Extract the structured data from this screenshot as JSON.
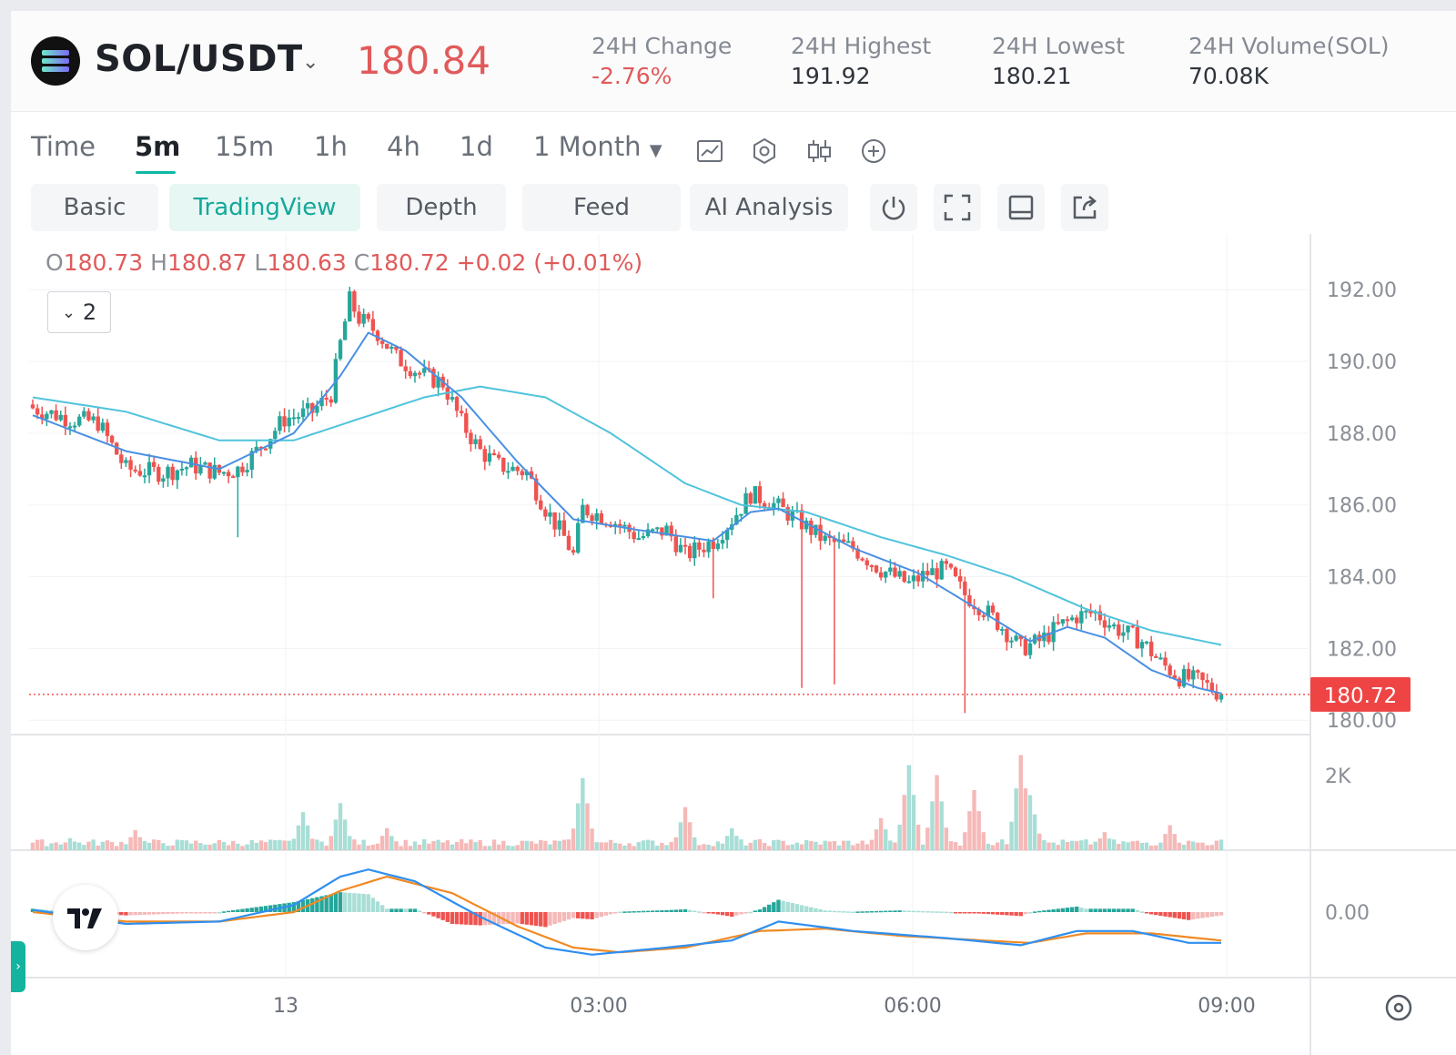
{
  "header": {
    "pair": "SOL/USDT",
    "price": "180.84",
    "stats": [
      {
        "label": "24H Change",
        "value": "-2.76%",
        "negative": true
      },
      {
        "label": "24H Highest",
        "value": "191.92",
        "negative": false
      },
      {
        "label": "24H Lowest",
        "value": "180.21",
        "negative": false
      },
      {
        "label": "24H Volume(SOL)",
        "value": "70.08K",
        "negative": false
      }
    ]
  },
  "toolbar": {
    "time_tabs": [
      "Time",
      "5m",
      "15m",
      "1h",
      "4h",
      "1d"
    ],
    "active_tab": "5m",
    "range_dropdown": "1 Month",
    "icons": [
      "indicator-chart-icon",
      "settings-hexagon-icon",
      "candle-style-icon",
      "add-circle-icon"
    ]
  },
  "views": {
    "buttons": [
      "Basic",
      "TradingView",
      "Depth",
      "Feed",
      "AI Analysis"
    ],
    "active": "TradingView",
    "icons": [
      "power-icon",
      "fullscreen-icon",
      "layout-icon",
      "share-icon"
    ]
  },
  "ohlc": {
    "o_key": "O",
    "o": "180.73",
    "h_key": "H",
    "h": "180.87",
    "l_key": "L",
    "l": "180.63",
    "c_key": "C",
    "c": "180.72",
    "change": "+0.02 (+0.01%)"
  },
  "indicator_toggle": "2",
  "colors": {
    "up": "#26a69a",
    "down": "#ef5350",
    "ma_fast": "#4a90e2",
    "ma_slow": "#4fc3dc",
    "macd": "#2f8ff0",
    "signal": "#f08a24",
    "accent": "#0fb7a6"
  },
  "chart_data": {
    "type": "candlestick",
    "price_axis": {
      "ticks": [
        "192.00",
        "190.00",
        "188.00",
        "186.00",
        "184.00",
        "182.00",
        "180.00"
      ],
      "range": [
        179.6,
        193.3
      ]
    },
    "last_price_label": "180.72",
    "last_price": 180.72,
    "time_axis": [
      "13",
      "03:00",
      "06:00",
      "09:00"
    ],
    "volume_axis": {
      "ticks": [
        "2K"
      ]
    },
    "macd_axis": {
      "ticks": [
        "0.00"
      ]
    },
    "close_path": [
      [
        0,
        188.7
      ],
      [
        8,
        188.4
      ],
      [
        14,
        188.3
      ],
      [
        20,
        187.0
      ],
      [
        28,
        186.9
      ],
      [
        34,
        187.1
      ],
      [
        40,
        186.9
      ],
      [
        44,
        187.0
      ],
      [
        48,
        187.5
      ],
      [
        54,
        188.4
      ],
      [
        60,
        188.6
      ],
      [
        64,
        189.1
      ],
      [
        66,
        190.5
      ],
      [
        68,
        191.7
      ],
      [
        70,
        191.2
      ],
      [
        74,
        190.8
      ],
      [
        78,
        190.1
      ],
      [
        84,
        189.6
      ],
      [
        88,
        189.4
      ],
      [
        92,
        188.3
      ],
      [
        96,
        187.5
      ],
      [
        100,
        187.1
      ],
      [
        106,
        186.9
      ],
      [
        110,
        185.9
      ],
      [
        114,
        185.1
      ],
      [
        116,
        184.6
      ],
      [
        118,
        185.9
      ],
      [
        124,
        185.6
      ],
      [
        130,
        185.1
      ],
      [
        136,
        185.3
      ],
      [
        140,
        184.6
      ],
      [
        146,
        185.0
      ],
      [
        150,
        185.6
      ],
      [
        154,
        186.3
      ],
      [
        158,
        186.1
      ],
      [
        164,
        185.6
      ],
      [
        170,
        185.0
      ],
      [
        176,
        184.8
      ],
      [
        182,
        184.2
      ],
      [
        188,
        183.8
      ],
      [
        192,
        184.1
      ],
      [
        196,
        184.2
      ],
      [
        200,
        183.5
      ],
      [
        204,
        183.1
      ],
      [
        208,
        182.6
      ],
      [
        212,
        182.0
      ],
      [
        216,
        182.2
      ],
      [
        220,
        182.6
      ],
      [
        224,
        182.9
      ],
      [
        228,
        183.0
      ],
      [
        232,
        182.6
      ],
      [
        238,
        182.2
      ],
      [
        242,
        181.6
      ],
      [
        246,
        181.2
      ],
      [
        250,
        181.1
      ],
      [
        255,
        180.72
      ]
    ],
    "spikes": [
      [
        44,
        185.1,
        184.8
      ],
      [
        146,
        183.4,
        183.2
      ],
      [
        165,
        180.9,
        181.4
      ],
      [
        172,
        181.0,
        181.5
      ],
      [
        200,
        180.2,
        180.6
      ]
    ],
    "ma_fast": [
      [
        0,
        188.5
      ],
      [
        20,
        187.5
      ],
      [
        40,
        187.0
      ],
      [
        56,
        188.0
      ],
      [
        66,
        189.6
      ],
      [
        72,
        190.8
      ],
      [
        80,
        190.3
      ],
      [
        92,
        189.0
      ],
      [
        104,
        187.2
      ],
      [
        116,
        185.6
      ],
      [
        130,
        185.3
      ],
      [
        146,
        185.0
      ],
      [
        154,
        185.8
      ],
      [
        160,
        185.9
      ],
      [
        176,
        184.8
      ],
      [
        190,
        184.1
      ],
      [
        204,
        183.0
      ],
      [
        214,
        182.2
      ],
      [
        222,
        182.6
      ],
      [
        230,
        182.3
      ],
      [
        240,
        181.4
      ],
      [
        250,
        180.9
      ],
      [
        255,
        180.75
      ]
    ],
    "ma_slow": [
      [
        0,
        189.0
      ],
      [
        20,
        188.6
      ],
      [
        40,
        187.8
      ],
      [
        56,
        187.8
      ],
      [
        70,
        188.4
      ],
      [
        84,
        189.0
      ],
      [
        96,
        189.3
      ],
      [
        110,
        189.0
      ],
      [
        124,
        188.0
      ],
      [
        140,
        186.6
      ],
      [
        152,
        186.0
      ],
      [
        166,
        185.8
      ],
      [
        182,
        185.1
      ],
      [
        196,
        184.6
      ],
      [
        210,
        184.0
      ],
      [
        226,
        183.1
      ],
      [
        240,
        182.5
      ],
      [
        255,
        182.1
      ]
    ],
    "volume_peaks": [
      [
        8,
        0.12
      ],
      [
        22,
        0.2
      ],
      [
        58,
        0.38
      ],
      [
        66,
        0.47
      ],
      [
        76,
        0.22
      ],
      [
        118,
        0.72
      ],
      [
        140,
        0.43
      ],
      [
        150,
        0.22
      ],
      [
        182,
        0.32
      ],
      [
        188,
        0.85
      ],
      [
        194,
        0.75
      ],
      [
        202,
        0.6
      ],
      [
        212,
        0.95
      ],
      [
        214,
        0.55
      ],
      [
        230,
        0.18
      ],
      [
        244,
        0.25
      ]
    ],
    "macd_line": [
      [
        0,
        0.1
      ],
      [
        20,
        -0.5
      ],
      [
        40,
        -0.4
      ],
      [
        56,
        0.3
      ],
      [
        66,
        1.5
      ],
      [
        72,
        1.8
      ],
      [
        82,
        1.3
      ],
      [
        96,
        -0.2
      ],
      [
        110,
        -1.5
      ],
      [
        120,
        -1.8
      ],
      [
        136,
        -1.5
      ],
      [
        150,
        -1.2
      ],
      [
        160,
        -0.4
      ],
      [
        176,
        -0.8
      ],
      [
        196,
        -1.1
      ],
      [
        212,
        -1.4
      ],
      [
        224,
        -0.8
      ],
      [
        236,
        -0.8
      ],
      [
        248,
        -1.3
      ],
      [
        255,
        -1.3
      ]
    ],
    "signal_line": [
      [
        0,
        0.0
      ],
      [
        20,
        -0.4
      ],
      [
        40,
        -0.4
      ],
      [
        56,
        0.0
      ],
      [
        66,
        0.9
      ],
      [
        76,
        1.5
      ],
      [
        90,
        0.8
      ],
      [
        104,
        -0.6
      ],
      [
        116,
        -1.5
      ],
      [
        126,
        -1.7
      ],
      [
        140,
        -1.5
      ],
      [
        156,
        -0.8
      ],
      [
        170,
        -0.7
      ],
      [
        186,
        -1.0
      ],
      [
        204,
        -1.2
      ],
      [
        214,
        -1.3
      ],
      [
        226,
        -0.9
      ],
      [
        240,
        -0.9
      ],
      [
        255,
        -1.2
      ]
    ]
  }
}
